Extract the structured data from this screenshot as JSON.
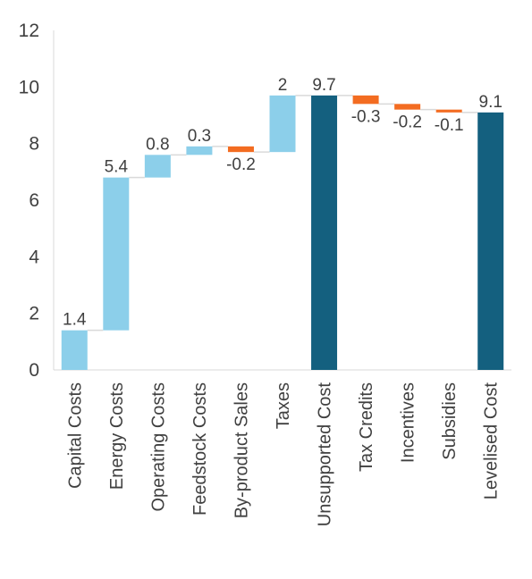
{
  "chart_data": {
    "type": "bar",
    "subtype": "waterfall",
    "title": "",
    "xlabel": "",
    "ylabel": "",
    "ylim": [
      0,
      12
    ],
    "yticks": [
      0,
      2,
      4,
      6,
      8,
      10,
      12
    ],
    "grid": false,
    "legend": "none",
    "categories": [
      "Capital Costs",
      "Energy Costs",
      "Operating Costs",
      "Feedstock Costs",
      "By-product Sales",
      "Taxes",
      "Unsupported Cost",
      "Tax Credits",
      "Incentives",
      "Subsidies",
      "Levelised Cost"
    ],
    "values": [
      1.4,
      5.4,
      0.8,
      0.3,
      -0.2,
      2,
      9.7,
      -0.3,
      -0.2,
      -0.1,
      9.1
    ],
    "labels": [
      "1.4",
      "5.4",
      "0.8",
      "0.3",
      "-0.2",
      "2",
      "9.7",
      "-0.3",
      "-0.2",
      "-0.1",
      "9.1"
    ],
    "is_total": [
      false,
      false,
      false,
      false,
      false,
      false,
      true,
      false,
      false,
      false,
      true
    ],
    "colors": {
      "increase": "#8ccfea",
      "decrease": "#f36c21",
      "total": "#14607f",
      "connector": "#d9d9d9",
      "axis": "#d9d9d9",
      "text": "#404040"
    }
  }
}
